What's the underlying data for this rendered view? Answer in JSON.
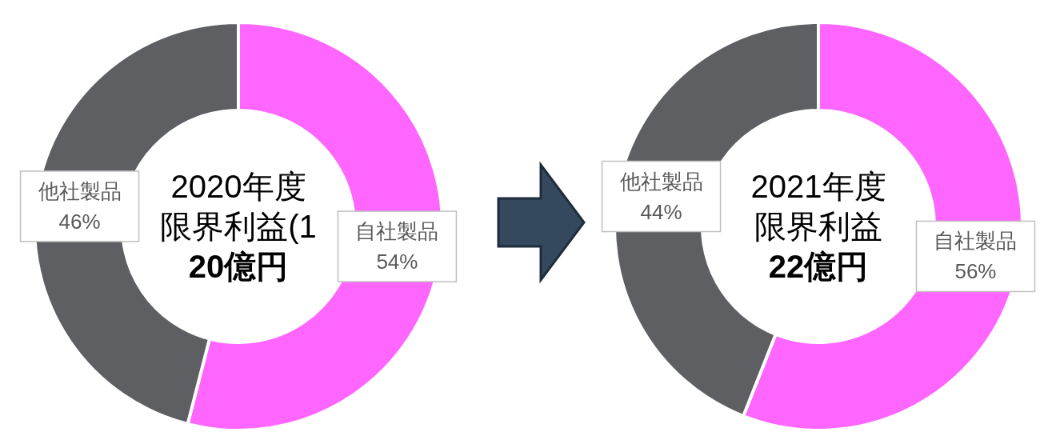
{
  "chart_data": [
    {
      "type": "donut",
      "title": "2020年度",
      "subtitle": "限界利益(1",
      "annotations": [
        "20億円"
      ],
      "categories": [
        "自社製品",
        "他社製品"
      ],
      "values": [
        54,
        46
      ],
      "value_labels": [
        "54%",
        "46%"
      ],
      "colors": [
        "#ff66ff",
        "#5e5f63"
      ]
    },
    {
      "type": "donut",
      "title": "2021年度",
      "subtitle": "限界利益",
      "annotations": [
        "22億円"
      ],
      "categories": [
        "自社製品",
        "他社製品"
      ],
      "values": [
        56,
        44
      ],
      "value_labels": [
        "56%",
        "44%"
      ],
      "colors": [
        "#ff66ff",
        "#5e5f63"
      ]
    }
  ]
}
